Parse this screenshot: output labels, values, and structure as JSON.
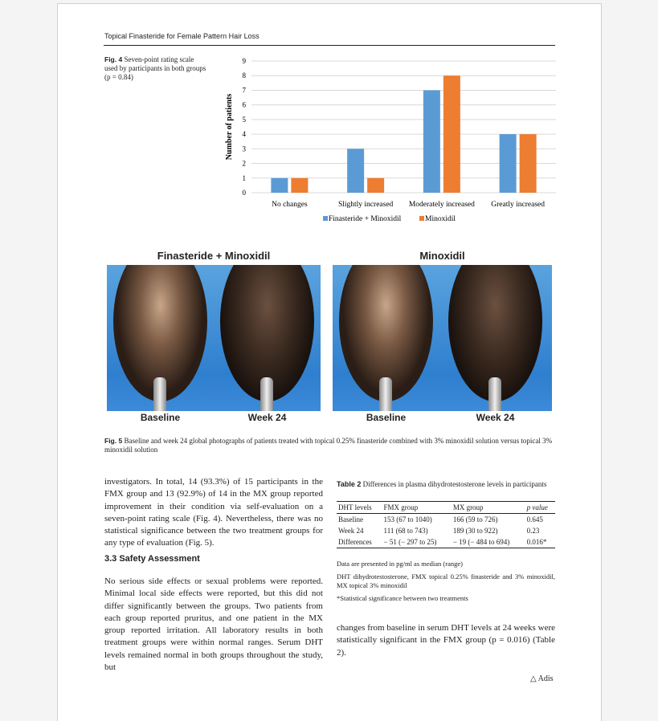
{
  "header": {
    "running_title": "Topical Finasteride for Female Pattern Hair Loss"
  },
  "fig4": {
    "label": "Fig. 4",
    "caption": "Seven-point rating scale used by participants in both groups (p = 0.84)"
  },
  "chart_data": {
    "type": "bar",
    "categories": [
      "No changes",
      "Slightly increased",
      "Moderately increased",
      "Greatly increased"
    ],
    "series": [
      {
        "name": "Finasteride + Minoxidil",
        "values": [
          1,
          3,
          7,
          4
        ],
        "color": "#5b9bd5"
      },
      {
        "name": "Minoxidil",
        "values": [
          1,
          1,
          8,
          4
        ],
        "color": "#ed7d31"
      }
    ],
    "ylabel": "Number of patients",
    "ylim": [
      0,
      9
    ],
    "yticks": [
      "0",
      "1",
      "2",
      "3",
      "4",
      "5",
      "6",
      "7",
      "8",
      "9"
    ],
    "grid": true,
    "legend": "bottom"
  },
  "fig5": {
    "group_left": "Finasteride + Minoxidil",
    "group_right": "Minoxidil",
    "labels": [
      "Baseline",
      "Week 24",
      "Baseline",
      "Week 24"
    ],
    "label": "Fig. 5",
    "caption": "Baseline and week 24 global photographs of patients treated with topical 0.25% finasteride combined with 3% minoxidil solution versus topical 3% minoxidil solution"
  },
  "left": {
    "p1": "investigators. In total, 14 (93.3%) of 15 participants in the FMX group and 13 (92.9%) of 14 in the MX group reported improvement in their condition via self-evaluation on a seven-point rating scale (Fig. 4). Nevertheless, there was no statistical significance between the two treatment groups for any type of evaluation (Fig. 5).",
    "section": "3.3  Safety Assessment",
    "p2": "No serious side effects or sexual problems were reported. Minimal local side effects were reported, but this did not differ significantly between the groups. Two patients from each group reported pruritus, and one patient in the MX group reported irritation. All laboratory results in both treatment groups were within normal ranges. Serum DHT levels remained normal in both groups throughout the study, but"
  },
  "table2": {
    "label": "Table 2",
    "caption": "Differences in plasma dihydrotestosterone levels in participants",
    "headers": [
      "DHT levels",
      "FMX group",
      "MX group",
      "p value"
    ],
    "rows": [
      [
        "Baseline",
        "153 (67 to 1040)",
        "166 (59 to 726)",
        "0.645"
      ],
      [
        "Week 24",
        "111 (68 to 743)",
        "189 (30 to 922)",
        "0.23"
      ],
      [
        "Differences",
        "− 51 (− 297 to 25)",
        "− 19 (− 484 to 694)",
        "0.016*"
      ]
    ],
    "note1": "Data are presented in pg/ml as median (range)",
    "note2": "DHT dihydrotestosterone, FMX topical 0.25% finasteride and 3% minoxidil, MX topical 3% minoxidil",
    "note3": "*Statistical significance between two treatments"
  },
  "right": {
    "p1": "changes from baseline in serum DHT levels at 24 weeks were statistically significant in the FMX group (p = 0.016) (Table 2)."
  },
  "footer": {
    "logo": "Adis"
  }
}
